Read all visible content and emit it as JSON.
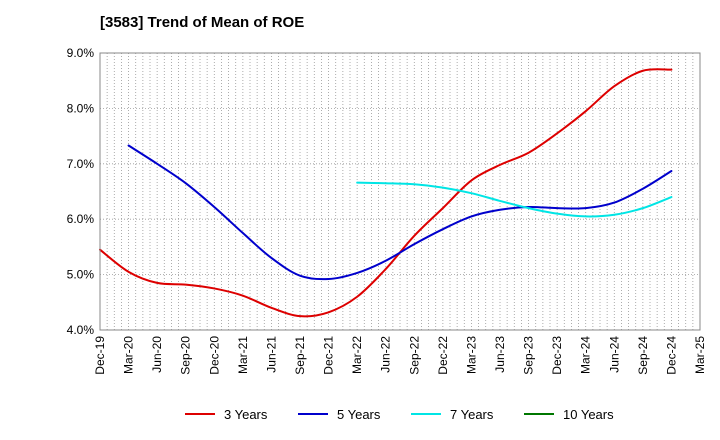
{
  "chart_data": {
    "type": "line",
    "title": "[3583]  Trend of Mean of ROE",
    "xlabel": "",
    "ylabel": "",
    "ylim": [
      4.0,
      9.0
    ],
    "y_ticks": [
      {
        "value": 4.0,
        "label": "4.0%"
      },
      {
        "value": 5.0,
        "label": "5.0%"
      },
      {
        "value": 6.0,
        "label": "6.0%"
      },
      {
        "value": 7.0,
        "label": "7.0%"
      },
      {
        "value": 8.0,
        "label": "8.0%"
      },
      {
        "value": 9.0,
        "label": "9.0%"
      }
    ],
    "x_categories": [
      "Dec-19",
      "Mar-20",
      "Jun-20",
      "Sep-20",
      "Dec-20",
      "Mar-21",
      "Jun-21",
      "Sep-21",
      "Dec-21",
      "Mar-22",
      "Jun-22",
      "Sep-22",
      "Dec-22",
      "Mar-23",
      "Jun-23",
      "Sep-23",
      "Dec-23",
      "Mar-24",
      "Jun-24",
      "Sep-24",
      "Dec-24",
      "Mar-25"
    ],
    "grid": true,
    "legend_position": "bottom",
    "series": [
      {
        "name": "3 Years",
        "color": "#dd0000",
        "values": [
          5.45,
          5.05,
          4.85,
          4.82,
          4.75,
          4.62,
          4.4,
          4.25,
          4.32,
          4.6,
          5.1,
          5.7,
          6.2,
          6.7,
          6.98,
          7.2,
          7.55,
          7.95,
          8.4,
          8.68,
          8.7,
          null
        ]
      },
      {
        "name": "5 Years",
        "color": "#0000cc",
        "values": [
          null,
          7.33,
          7.0,
          6.65,
          6.22,
          5.75,
          5.3,
          4.98,
          4.92,
          5.03,
          5.25,
          5.55,
          5.82,
          6.05,
          6.17,
          6.22,
          6.2,
          6.2,
          6.3,
          6.55,
          6.87,
          null
        ]
      },
      {
        "name": "7 Years",
        "color": "#00e5e5",
        "values": [
          null,
          null,
          null,
          null,
          null,
          null,
          null,
          null,
          null,
          6.66,
          6.65,
          6.63,
          6.57,
          6.47,
          6.33,
          6.2,
          6.1,
          6.05,
          6.08,
          6.2,
          6.4,
          null
        ]
      },
      {
        "name": "10 Years",
        "color": "#007700",
        "values": [
          null,
          null,
          null,
          null,
          null,
          null,
          null,
          null,
          null,
          null,
          null,
          null,
          null,
          null,
          null,
          null,
          null,
          null,
          null,
          null,
          null,
          null
        ]
      }
    ]
  }
}
